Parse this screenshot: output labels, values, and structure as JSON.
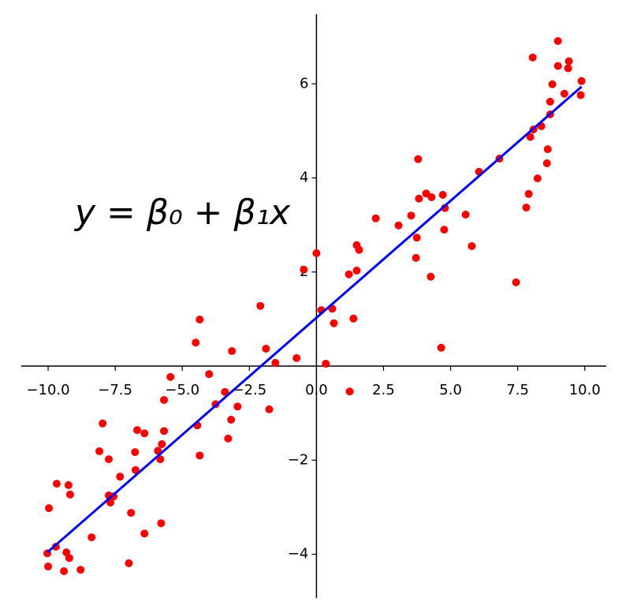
{
  "chart_data": {
    "type": "scatter",
    "annotation": "y = β₀ + β₁x",
    "xlim": [
      -11,
      10.8
    ],
    "ylim": [
      -4.93,
      7.48
    ],
    "xticks": [
      {
        "value": -10,
        "label": "−10.0"
      },
      {
        "value": -7.5,
        "label": "−7.5"
      },
      {
        "value": -5,
        "label": "−5.0"
      },
      {
        "value": -2.5,
        "label": "−2.5"
      },
      {
        "value": 0,
        "label": "0.0"
      },
      {
        "value": 2.5,
        "label": "2.5"
      },
      {
        "value": 5,
        "label": "5.0"
      },
      {
        "value": 7.5,
        "label": "7.5"
      },
      {
        "value": 10,
        "label": "10.0"
      }
    ],
    "yticks": [
      {
        "value": -4,
        "label": "−4"
      },
      {
        "value": -2,
        "label": "−2"
      },
      2,
      4,
      6
    ],
    "color": "#ff0000",
    "x": [
      9.0,
      8.06,
      9.41,
      9.0,
      9.38,
      9.88,
      9.85,
      9.24,
      8.79,
      8.71,
      8.71,
      8.38,
      8.09,
      7.97,
      8.62,
      6.82,
      6.06,
      3.79,
      8.24,
      8.59,
      7.91,
      7.82,
      4.09,
      4.29,
      3.82,
      4.71,
      4.79,
      5.56,
      3.53,
      2.21,
      3.06,
      4.76,
      3.74,
      5.79,
      1.5,
      1.59,
      0.0,
      3.71,
      -0.47,
      1.5,
      1.21,
      4.26,
      7.44,
      0.18,
      0.59,
      -2.09,
      1.38,
      0.65,
      -4.35,
      -4.5,
      -3.15,
      -1.88,
      -0.74,
      -1.53,
      0.35,
      4.65,
      -4.0,
      -5.44,
      1.24,
      -3.41,
      -5.68,
      -3.76,
      -2.94,
      -1.76,
      -3.18,
      -7.97,
      -4.44,
      -6.68,
      -6.41,
      -5.68,
      -3.29,
      -5.76,
      -5.91,
      -8.09,
      -6.76,
      -4.35,
      -7.74,
      -5.82,
      -6.74,
      -7.32,
      -9.68,
      -9.24,
      -9.18,
      -7.74,
      -7.56,
      -7.68,
      -9.97,
      -6.91,
      -5.79,
      -6.41,
      -8.38,
      -9.71,
      -10.03,
      -9.32,
      -9.21,
      -6.99,
      -10.0,
      -8.79,
      -9.41
    ],
    "y": [
      6.91,
      6.56,
      6.48,
      6.38,
      6.33,
      6.06,
      5.76,
      5.79,
      5.99,
      5.62,
      5.35,
      5.1,
      5.03,
      4.87,
      4.61,
      4.41,
      4.13,
      4.4,
      3.99,
      4.31,
      3.66,
      3.37,
      3.67,
      3.59,
      3.56,
      3.64,
      3.36,
      3.22,
      3.2,
      3.14,
      2.99,
      2.9,
      2.73,
      2.55,
      2.57,
      2.47,
      2.4,
      2.3,
      2.05,
      2.03,
      1.95,
      1.9,
      1.78,
      1.19,
      1.22,
      1.28,
      1.01,
      0.91,
      0.99,
      0.5,
      0.32,
      0.37,
      0.17,
      0.07,
      0.05,
      0.39,
      -0.17,
      -0.23,
      -0.54,
      -0.55,
      -0.72,
      -0.81,
      -0.86,
      -0.92,
      -1.14,
      -1.22,
      -1.26,
      -1.36,
      -1.43,
      -1.38,
      -1.54,
      -1.66,
      -1.8,
      -1.81,
      -1.83,
      -1.9,
      -1.98,
      -1.98,
      -2.21,
      -2.35,
      -2.5,
      -2.53,
      -2.73,
      -2.75,
      -2.77,
      -2.9,
      -3.02,
      -3.12,
      -3.34,
      -3.56,
      -3.64,
      -3.84,
      -3.98,
      -3.96,
      -4.08,
      -4.19,
      -4.26,
      -4.33,
      -4.36
    ],
    "fit_line": {
      "x": [
        -10.03,
        9.88
      ],
      "y": [
        -3.96,
        5.94
      ],
      "color": "#0000ff"
    }
  }
}
